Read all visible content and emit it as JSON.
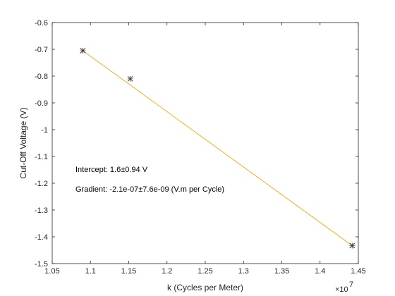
{
  "chart_data": {
    "type": "scatter",
    "title": "",
    "xlabel": "k (Cycles per Meter)",
    "ylabel": "Cut-Off Voltage (V)",
    "x_exponent_label": "×10",
    "x_exponent_power": "7",
    "xlim": [
      1.05,
      1.45
    ],
    "ylim": [
      -1.5,
      -0.6
    ],
    "x_ticks": [
      1.05,
      1.1,
      1.15,
      1.2,
      1.25,
      1.3,
      1.35,
      1.4,
      1.45
    ],
    "x_tick_labels": [
      "1.05",
      "1.1",
      "1.15",
      "1.2",
      "1.25",
      "1.3",
      "1.35",
      "1.4",
      "1.45"
    ],
    "y_ticks": [
      -1.5,
      -1.4,
      -1.3,
      -1.2,
      -1.1,
      -1.0,
      -0.9,
      -0.8,
      -0.7,
      -0.6
    ],
    "y_tick_labels": [
      "-1.5",
      "-1.4",
      "-1.3",
      "-1.2",
      "-1.1",
      "-1",
      "-0.9",
      "-0.8",
      "-0.7",
      "-0.6"
    ],
    "grid": false,
    "points": [
      {
        "x": 1.09,
        "y": -0.705
      },
      {
        "x": 1.152,
        "y": -0.81
      },
      {
        "x": 1.442,
        "y": -1.433
      }
    ],
    "fit_line": {
      "x": [
        1.09,
        1.442
      ],
      "y": [
        -0.705,
        -1.433
      ]
    },
    "annotations": [
      {
        "text": "Intercept: 1.6±0.94 V"
      },
      {
        "text": "Gradient: -2.1e-07±7.6e-09 (V.m per Cycle)"
      }
    ],
    "colors": {
      "fit_line": "#EDB120",
      "marker_error": "#D95319",
      "marker_point": "#0072BD",
      "marker_cross": "#333333",
      "axes": "#262626"
    }
  }
}
